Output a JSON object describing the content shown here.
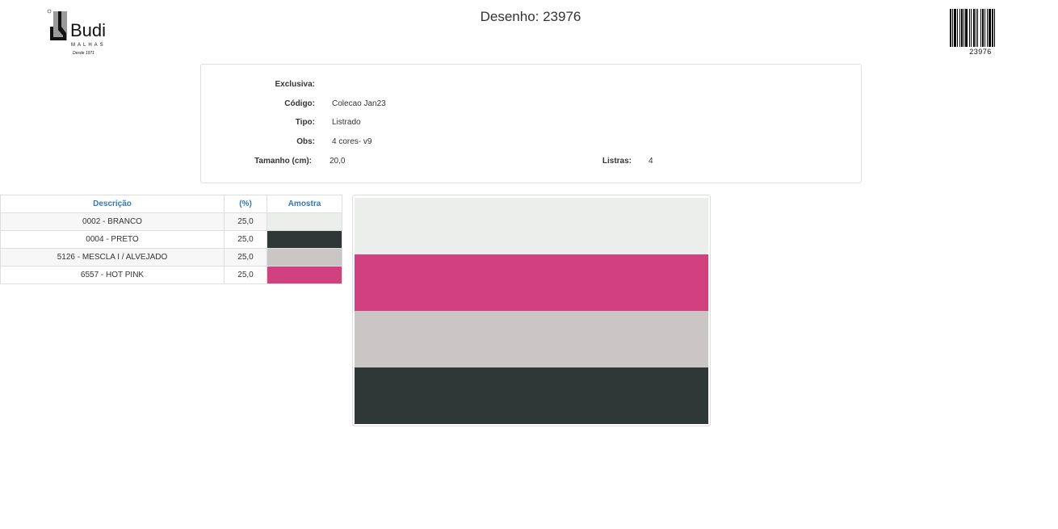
{
  "header": {
    "title": "Desenho: 23976",
    "logo_text": "Budi MALHAS Desde 1971",
    "barcode_value": "23976"
  },
  "info": {
    "exclusiva": {
      "label": "Exclusiva:",
      "value": ""
    },
    "codigo": {
      "label": "Código:",
      "value": "Colecao Jan23"
    },
    "tipo": {
      "label": "Tipo:",
      "value": "Listrado"
    },
    "obs": {
      "label": "Obs:",
      "value": "4 cores- v9"
    },
    "tamanho": {
      "label": "Tamanho (cm):",
      "value": "20,0"
    },
    "listras": {
      "label": "Listras:",
      "value": "4"
    }
  },
  "table": {
    "headers": [
      "Descrição",
      "(%)",
      "Amostra"
    ],
    "rows": [
      {
        "descricao": "0002 - BRANCO",
        "pct": "25,0",
        "color": "#eceeec"
      },
      {
        "descricao": "0004 - PRETO",
        "pct": "25,0",
        "color": "#303837"
      },
      {
        "descricao": "5126 - MESCLA I / ALVEJADO",
        "pct": "25,0",
        "color": "#cac6c5"
      },
      {
        "descricao": "6557 - HOT PINK",
        "pct": "25,0",
        "color": "#d1417f"
      }
    ]
  },
  "preview": {
    "stripes": [
      "#eceeec",
      "#d1417f",
      "#cac6c5",
      "#303837"
    ]
  }
}
